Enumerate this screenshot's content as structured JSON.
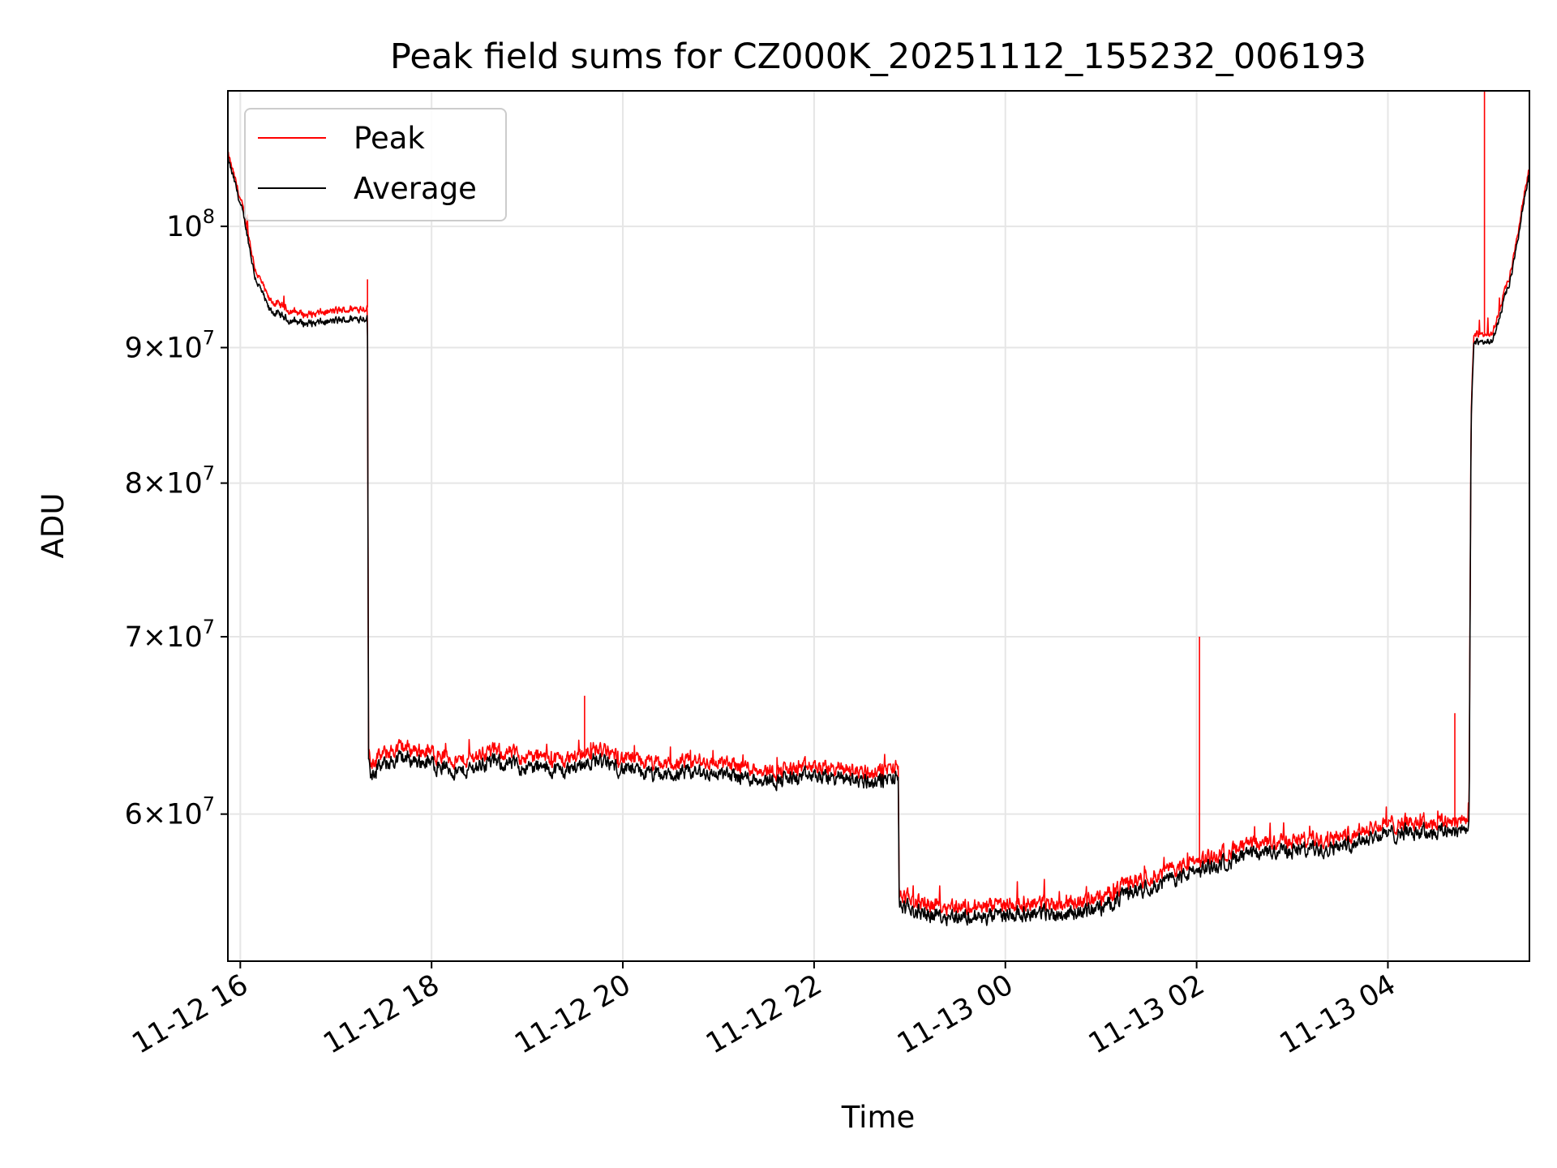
{
  "chart_data": {
    "type": "line",
    "title": "Peak field sums for CZ000K_20251112_155232_006193",
    "xlabel": "Time",
    "ylabel": "ADU",
    "yscale": "log",
    "grid": true,
    "legend_position": "top-left",
    "x_unit": "hours since 11-12 00:00",
    "xlim": [
      15.87,
      29.48
    ],
    "ylim": [
      52800000,
      112500000
    ],
    "x_ticks": [
      {
        "value": 16,
        "label": "11-12 16"
      },
      {
        "value": 18,
        "label": "11-12 18"
      },
      {
        "value": 20,
        "label": "11-12 20"
      },
      {
        "value": 22,
        "label": "11-12 22"
      },
      {
        "value": 24,
        "label": "11-13 00"
      },
      {
        "value": 26,
        "label": "11-13 02"
      },
      {
        "value": 28,
        "label": "11-13 04"
      }
    ],
    "y_ticks": [
      {
        "value": 60000000,
        "mantissa": "6",
        "base": "10",
        "exp": "7"
      },
      {
        "value": 70000000,
        "mantissa": "7",
        "base": "10",
        "exp": "7"
      },
      {
        "value": 80000000,
        "mantissa": "8",
        "base": "10",
        "exp": "7"
      },
      {
        "value": 90000000,
        "mantissa": "9",
        "base": "10",
        "exp": "7"
      },
      {
        "value": 100000000,
        "mantissa": "",
        "base": "10",
        "exp": "8"
      }
    ],
    "series": [
      {
        "name": "Peak",
        "color": "#ff0000",
        "x": [
          15.87,
          15.95,
          16.05,
          16.15,
          16.3,
          16.5,
          16.7,
          16.9,
          17.1,
          17.33,
          17.34,
          17.36,
          17.5,
          17.7,
          18.0,
          18.3,
          18.6,
          19.0,
          19.4,
          19.7,
          20.0,
          20.4,
          20.8,
          21.2,
          21.6,
          22.0,
          22.3,
          22.6,
          22.88,
          22.89,
          22.92,
          23.2,
          23.5,
          23.8,
          24.2,
          24.6,
          25.0,
          25.3,
          25.6,
          26.0,
          26.4,
          26.8,
          27.2,
          27.5,
          27.8,
          28.2,
          28.5,
          28.7,
          28.85,
          28.87,
          28.9,
          29.1,
          29.3,
          29.48
        ],
        "y": [
          106500000,
          104000000,
          100800000,
          96500000,
          93800000,
          93000000,
          92600000,
          92800000,
          93000000,
          93200000,
          63500000,
          62800000,
          63200000,
          63600000,
          63300000,
          62800000,
          63400000,
          63100000,
          62900000,
          63500000,
          63000000,
          62600000,
          62800000,
          62600000,
          62300000,
          62500000,
          62400000,
          62200000,
          62500000,
          56200000,
          55800000,
          55500000,
          55400000,
          55300000,
          55600000,
          55500000,
          55800000,
          56600000,
          57000000,
          57600000,
          58200000,
          58600000,
          58700000,
          58900000,
          59300000,
          59600000,
          59600000,
          59700000,
          59800000,
          85000000,
          91000000,
          91200000,
          96500000,
          105500000
        ]
      },
      {
        "name": "Average",
        "color": "#000000",
        "x": [
          15.87,
          15.95,
          16.05,
          16.15,
          16.3,
          16.5,
          16.7,
          16.9,
          17.1,
          17.33,
          17.34,
          17.36,
          17.5,
          17.7,
          18.0,
          18.3,
          18.6,
          19.0,
          19.4,
          19.7,
          20.0,
          20.4,
          20.8,
          21.2,
          21.6,
          22.0,
          22.3,
          22.6,
          22.88,
          22.89,
          22.92,
          23.2,
          23.5,
          23.8,
          24.2,
          24.6,
          25.0,
          25.3,
          25.6,
          26.0,
          26.4,
          26.8,
          27.2,
          27.5,
          27.8,
          28.2,
          28.5,
          28.7,
          28.85,
          28.87,
          28.9,
          29.1,
          29.3,
          29.48
        ],
        "y": [
          106000000,
          103600000,
          100300000,
          95800000,
          93000000,
          92200000,
          91900000,
          92000000,
          92200000,
          92400000,
          63000000,
          62200000,
          62600000,
          63000000,
          62700000,
          62200000,
          62800000,
          62500000,
          62300000,
          62900000,
          62400000,
          62000000,
          62200000,
          62000000,
          61800000,
          62000000,
          61900000,
          61700000,
          61900000,
          55700000,
          55300000,
          55000000,
          54900000,
          54800000,
          55100000,
          55000000,
          55300000,
          56100000,
          56500000,
          57100000,
          57700000,
          58100000,
          58200000,
          58400000,
          58800000,
          59100000,
          59100000,
          59200000,
          59300000,
          84500000,
          90400000,
          90600000,
          96000000,
          105000000
        ]
      }
    ],
    "spikes": [
      {
        "series": "Peak",
        "x": 26.03,
        "y": 70000000
      },
      {
        "series": "Peak",
        "x": 28.7,
        "y": 65500000
      },
      {
        "series": "Peak",
        "x": 29.01,
        "y": 112500000
      },
      {
        "series": "Peak",
        "x": 19.6,
        "y": 66500000
      },
      {
        "series": "Peak",
        "x": 17.33,
        "y": 95500000
      }
    ]
  }
}
